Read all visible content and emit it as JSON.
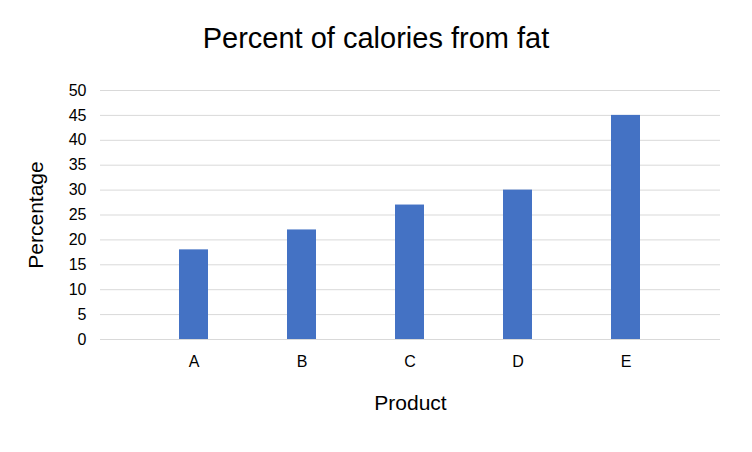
{
  "chart_data": {
    "type": "bar",
    "title": "Percent of calories from fat",
    "x_label": "Product",
    "y_label": "Percentage",
    "categories": [
      "A",
      "B",
      "C",
      "D",
      "E"
    ],
    "values": [
      18,
      22,
      27,
      30,
      45
    ],
    "color": "#4472c4",
    "ylim": [
      0,
      50
    ],
    "yticks": [
      0,
      5,
      10,
      15,
      20,
      25,
      30,
      35,
      40,
      45,
      50
    ],
    "grid": true
  }
}
